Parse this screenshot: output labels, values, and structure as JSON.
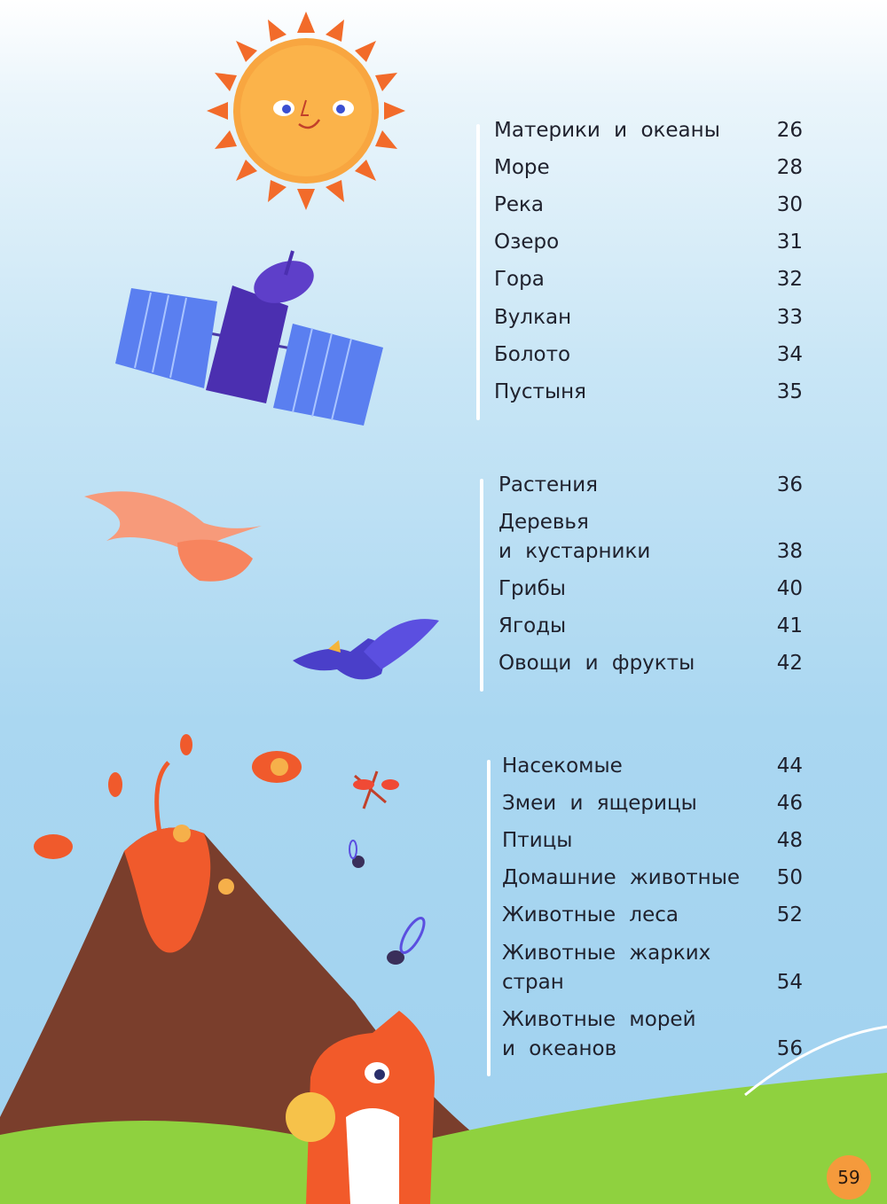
{
  "sections": [
    {
      "entries": [
        {
          "title": "Материки и океаны",
          "page": "26"
        },
        {
          "title": "Море",
          "page": "28"
        },
        {
          "title": "Река",
          "page": "30"
        },
        {
          "title": "Озеро",
          "page": "31"
        },
        {
          "title": "Гора",
          "page": "32"
        },
        {
          "title": "Вулкан",
          "page": "33"
        },
        {
          "title": "Болото",
          "page": "34"
        },
        {
          "title": "Пустыня",
          "page": "35"
        }
      ]
    },
    {
      "entries": [
        {
          "title": "Растения",
          "page": "36"
        },
        {
          "title": "Деревья\nи кустарники",
          "page": "38"
        },
        {
          "title": "Грибы",
          "page": "40"
        },
        {
          "title": "Ягоды",
          "page": "41"
        },
        {
          "title": "Овощи и фрукты",
          "page": "42"
        }
      ]
    },
    {
      "entries": [
        {
          "title": "Насекомые",
          "page": "44"
        },
        {
          "title": "Змеи и ящерицы",
          "page": "46"
        },
        {
          "title": "Птицы",
          "page": "48"
        },
        {
          "title": "Домашние животные",
          "page": "50"
        },
        {
          "title": "Животные леса",
          "page": "52"
        },
        {
          "title": "Животные жарких\nстран",
          "page": "54"
        },
        {
          "title": "Животные морей\nи океанов",
          "page": "56"
        }
      ]
    }
  ],
  "page_number": "59",
  "colors": {
    "page_badge": "#f59a3c",
    "sky": "#a9d6f1",
    "grass": "#8fd13f",
    "text": "#20222e"
  },
  "illustrations": [
    "sun-icon",
    "satellite-icon",
    "bird-icon",
    "volcano-icon",
    "fox-icon",
    "insect-icon"
  ]
}
